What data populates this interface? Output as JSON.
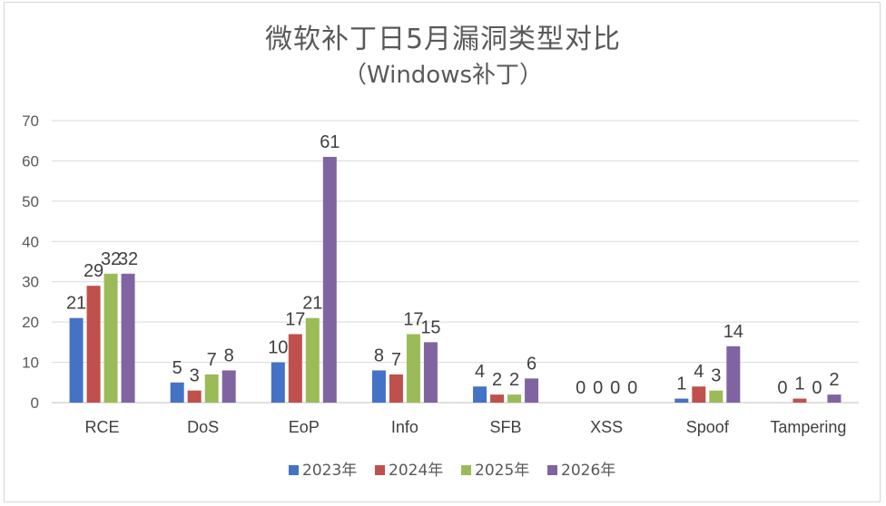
{
  "chart_data": {
    "type": "bar",
    "title": "微软补丁日5月漏洞类型对比",
    "subtitle": "（Windows补丁）",
    "categories": [
      "RCE",
      "DoS",
      "EoP",
      "Info",
      "SFB",
      "XSS",
      "Spoof",
      "Tampering"
    ],
    "series": [
      {
        "name": "2023年",
        "color": "#4472C4",
        "values": [
          21,
          5,
          10,
          8,
          4,
          0,
          1,
          0
        ]
      },
      {
        "name": "2024年",
        "color": "#C0504D",
        "values": [
          29,
          3,
          17,
          7,
          2,
          0,
          4,
          1
        ]
      },
      {
        "name": "2025年",
        "color": "#9BBB59",
        "values": [
          32,
          7,
          21,
          17,
          2,
          0,
          3,
          0
        ]
      },
      {
        "name": "2026年",
        "color": "#8064A2",
        "values": [
          32,
          8,
          61,
          15,
          6,
          0,
          14,
          2
        ]
      }
    ],
    "yticks": [
      0,
      10,
      20,
      30,
      40,
      50,
      60,
      70
    ],
    "ylim": [
      0,
      70
    ],
    "grid": true,
    "legend": "bottom",
    "data_labels": true
  }
}
